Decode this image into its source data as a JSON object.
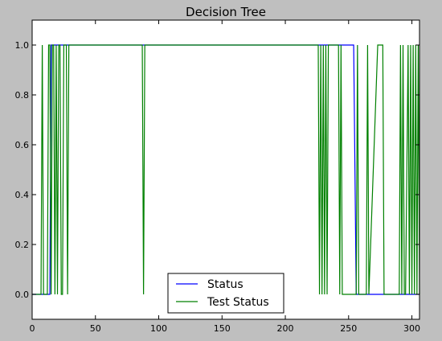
{
  "chart_data": {
    "type": "line",
    "title": "Decision Tree",
    "xlabel": "",
    "ylabel": "",
    "xlim": [
      0,
      306
    ],
    "ylim": [
      -0.1,
      1.1
    ],
    "xticks": [
      0,
      50,
      100,
      150,
      200,
      250,
      300
    ],
    "yticks": [
      0.0,
      0.2,
      0.4,
      0.6,
      0.8,
      1.0
    ],
    "xtick_labels": [
      "0",
      "50",
      "100",
      "150",
      "200",
      "250",
      "300"
    ],
    "ytick_labels": [
      "0.0",
      "0.2",
      "0.4",
      "0.6",
      "0.8",
      "1.0"
    ],
    "grid": false,
    "legend_position": "lower center",
    "series": [
      {
        "name": "Status",
        "color": "#0000ff",
        "x": [
          0,
          14,
          15,
          254,
          256,
          306
        ],
        "y": [
          0,
          0,
          1,
          1,
          0,
          0
        ]
      },
      {
        "name": "Test Status",
        "color": "#008000",
        "x": [
          0,
          7,
          8,
          9,
          12,
          13,
          14,
          15,
          16,
          17,
          18,
          19,
          20,
          21,
          22,
          23,
          24,
          25,
          26,
          27,
          28,
          29,
          30,
          87,
          88,
          89,
          226,
          227,
          228,
          229,
          230,
          231,
          232,
          233,
          234,
          235,
          242,
          243,
          244,
          245,
          246,
          247,
          256,
          257,
          258,
          264,
          265,
          266,
          273,
          274,
          277,
          278,
          290,
          291,
          292,
          293,
          294,
          295,
          297,
          298,
          299,
          300,
          301,
          302,
          303,
          304,
          305,
          306
        ],
        "y": [
          0,
          0,
          1,
          0,
          0,
          1,
          1,
          0,
          1,
          1,
          0,
          1,
          0,
          1,
          1,
          0,
          0,
          1,
          1,
          1,
          0,
          1,
          1,
          1,
          0,
          1,
          1,
          0,
          1,
          0,
          1,
          0,
          1,
          0,
          1,
          1,
          1,
          0,
          1,
          0,
          0,
          0,
          0,
          1,
          0,
          0,
          1,
          0,
          1,
          1,
          1,
          0,
          0,
          1,
          0,
          1,
          0,
          0,
          1,
          0,
          1,
          0,
          1,
          0,
          1,
          0,
          1,
          0
        ]
      }
    ]
  }
}
